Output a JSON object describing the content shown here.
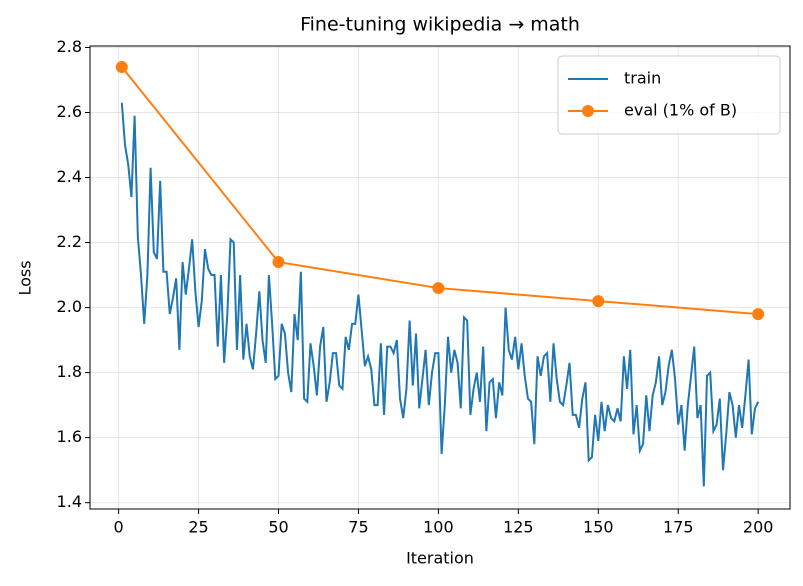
{
  "chart_data": {
    "type": "line",
    "title": "Fine-tuning wikipedia → math",
    "x_label": "Iteration",
    "y_label": "Loss",
    "xlim": [
      -8.95,
      209.95
    ],
    "ylim": [
      1.3805,
      2.8045
    ],
    "xticks": [
      0,
      25,
      50,
      75,
      100,
      125,
      150,
      175,
      200
    ],
    "yticks": [
      1.4,
      1.6,
      1.8,
      {
        "value": 2,
        "label": "2.0"
      },
      2.2,
      2.4,
      2.6,
      2.8
    ],
    "grid": true,
    "legend": "upper right",
    "series": [
      {
        "name": "train",
        "color": "#1f77b4",
        "marker": false,
        "x": [
          1,
          2,
          3,
          4,
          5,
          6,
          7,
          8,
          9,
          10,
          11,
          12,
          13,
          14,
          15,
          16,
          17,
          18,
          19,
          20,
          21,
          22,
          23,
          24,
          25,
          26,
          27,
          28,
          29,
          30,
          31,
          32,
          33,
          34,
          35,
          36,
          37,
          38,
          39,
          40,
          41,
          42,
          43,
          44,
          45,
          46,
          47,
          48,
          49,
          50,
          51,
          52,
          53,
          54,
          55,
          56,
          57,
          58,
          59,
          60,
          61,
          62,
          63,
          64,
          65,
          66,
          67,
          68,
          69,
          70,
          71,
          72,
          73,
          74,
          75,
          76,
          77,
          78,
          79,
          80,
          81,
          82,
          83,
          84,
          85,
          86,
          87,
          88,
          89,
          90,
          91,
          92,
          93,
          94,
          95,
          96,
          97,
          98,
          99,
          100,
          101,
          102,
          103,
          104,
          105,
          106,
          107,
          108,
          109,
          110,
          111,
          112,
          113,
          114,
          115,
          116,
          117,
          118,
          119,
          120,
          121,
          122,
          123,
          124,
          125,
          126,
          127,
          128,
          129,
          130,
          131,
          132,
          133,
          134,
          135,
          136,
          137,
          138,
          139,
          140,
          141,
          142,
          143,
          144,
          145,
          146,
          147,
          148,
          149,
          150,
          151,
          152,
          153,
          154,
          155,
          156,
          157,
          158,
          159,
          160,
          161,
          162,
          163,
          164,
          165,
          166,
          167,
          168,
          169,
          170,
          171,
          172,
          173,
          174,
          175,
          176,
          177,
          178,
          179,
          180,
          181,
          182,
          183,
          184,
          185,
          186,
          187,
          188,
          189,
          190,
          191,
          192,
          193,
          194,
          195,
          196,
          197,
          198,
          199,
          200
        ],
        "values": [
          2.63,
          2.5,
          2.44,
          2.34,
          2.59,
          2.22,
          2.1,
          1.95,
          2.1,
          2.43,
          2.17,
          2.15,
          2.39,
          2.11,
          2.11,
          1.98,
          2.03,
          2.09,
          1.87,
          2.14,
          2.04,
          2.12,
          2.21,
          2.05,
          1.94,
          2.02,
          2.18,
          2.12,
          2.1,
          2.1,
          1.88,
          2.1,
          1.83,
          1.98,
          2.21,
          2.2,
          1.87,
          2.1,
          1.84,
          1.95,
          1.85,
          1.81,
          1.92,
          2.05,
          1.9,
          1.83,
          2.1,
          1.95,
          1.78,
          1.79,
          1.95,
          1.92,
          1.8,
          1.74,
          1.98,
          1.9,
          2.11,
          1.72,
          1.71,
          1.89,
          1.82,
          1.73,
          1.88,
          1.94,
          1.71,
          1.77,
          1.86,
          1.86,
          1.76,
          1.75,
          1.91,
          1.87,
          1.95,
          1.95,
          2.04,
          1.93,
          1.82,
          1.85,
          1.81,
          1.7,
          1.7,
          1.89,
          1.67,
          1.88,
          1.88,
          1.86,
          1.9,
          1.72,
          1.66,
          1.75,
          1.96,
          1.76,
          1.92,
          1.69,
          1.78,
          1.87,
          1.7,
          1.8,
          1.86,
          1.86,
          1.55,
          1.7,
          1.91,
          1.8,
          1.87,
          1.83,
          1.69,
          1.97,
          1.96,
          1.67,
          1.75,
          1.8,
          1.71,
          1.88,
          1.62,
          1.77,
          1.78,
          1.66,
          1.77,
          1.73,
          2.0,
          1.87,
          1.84,
          1.91,
          1.81,
          1.89,
          1.79,
          1.72,
          1.71,
          1.58,
          1.85,
          1.79,
          1.85,
          1.86,
          1.71,
          1.89,
          1.78,
          1.71,
          1.7,
          1.76,
          1.83,
          1.67,
          1.67,
          1.63,
          1.72,
          1.77,
          1.53,
          1.54,
          1.67,
          1.59,
          1.71,
          1.62,
          1.7,
          1.66,
          1.65,
          1.69,
          1.65,
          1.85,
          1.75,
          1.87,
          1.61,
          1.7,
          1.56,
          1.58,
          1.73,
          1.62,
          1.73,
          1.77,
          1.85,
          1.7,
          1.74,
          1.82,
          1.87,
          1.78,
          1.64,
          1.7,
          1.56,
          1.7,
          1.79,
          1.88,
          1.66,
          1.7,
          1.45,
          1.79,
          1.8,
          1.62,
          1.64,
          1.72,
          1.5,
          1.61,
          1.74,
          1.7,
          1.6,
          1.7,
          1.63,
          1.73,
          1.84,
          1.61,
          1.69,
          1.71
        ]
      },
      {
        "name": "eval (1% of B)",
        "color": "#ff7f0e",
        "marker": true,
        "x": [
          1,
          50,
          100,
          150,
          200
        ],
        "values": [
          2.74,
          2.14,
          2.06,
          2.02,
          1.98
        ]
      }
    ]
  }
}
